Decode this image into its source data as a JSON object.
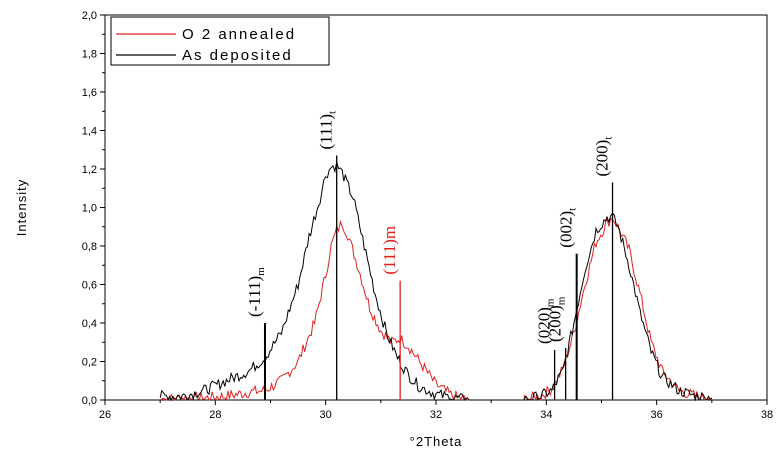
{
  "chart_data": {
    "type": "line",
    "xlabel": "°2Theta",
    "ylabel": "Intensity",
    "xlim": [
      26,
      38
    ],
    "ylim": [
      0,
      2.0
    ],
    "x_ticks": [
      "26",
      "28",
      "30",
      "32",
      "34",
      "36",
      "38"
    ],
    "y_ticks": [
      "0,0",
      "0,2",
      "0,4",
      "0,6",
      "0,8",
      "1,0",
      "1,2",
      "1,4",
      "1,6",
      "1,8",
      "2,0"
    ],
    "legend_position": "top-left",
    "colors": {
      "o2_annealed": "#e02020",
      "as_deposited": "#000000"
    },
    "series": [
      {
        "name": "O 2 annealed",
        "x": [
          27.0,
          27.4,
          27.8,
          28.2,
          28.6,
          28.9,
          29.2,
          29.5,
          29.8,
          30.0,
          30.1,
          30.2,
          30.3,
          30.4,
          30.6,
          30.8,
          31.0,
          31.2,
          31.35,
          31.5,
          31.7,
          32.0,
          32.3,
          32.6,
          33.6,
          33.9,
          34.1,
          34.3,
          34.5,
          34.7,
          34.9,
          35.1,
          35.2,
          35.3,
          35.5,
          35.7,
          35.9,
          36.1,
          36.4,
          36.7,
          37.0
        ],
        "y": [
          0.0,
          0.01,
          0.01,
          0.02,
          0.04,
          0.05,
          0.1,
          0.2,
          0.4,
          0.65,
          0.8,
          0.88,
          0.92,
          0.86,
          0.68,
          0.48,
          0.36,
          0.3,
          0.32,
          0.28,
          0.2,
          0.08,
          0.02,
          0.0,
          0.0,
          0.02,
          0.06,
          0.16,
          0.35,
          0.6,
          0.82,
          0.92,
          0.95,
          0.9,
          0.78,
          0.55,
          0.3,
          0.15,
          0.05,
          0.02,
          0.01
        ]
      },
      {
        "name": "As deposited",
        "x": [
          27.0,
          27.4,
          27.8,
          28.2,
          28.6,
          28.9,
          29.2,
          29.5,
          29.7,
          29.9,
          30.0,
          30.1,
          30.2,
          30.3,
          30.5,
          30.7,
          30.9,
          31.1,
          31.3,
          31.5,
          31.7,
          32.0,
          32.3,
          32.6,
          33.6,
          33.9,
          34.1,
          34.3,
          34.5,
          34.7,
          34.9,
          35.1,
          35.2,
          35.3,
          35.5,
          35.7,
          35.9,
          36.1,
          36.4,
          36.7,
          37.0
        ],
        "y": [
          0.02,
          0.02,
          0.05,
          0.1,
          0.15,
          0.22,
          0.35,
          0.6,
          0.85,
          1.05,
          1.17,
          1.21,
          1.22,
          1.18,
          1.05,
          0.8,
          0.55,
          0.35,
          0.22,
          0.13,
          0.07,
          0.03,
          0.01,
          0.0,
          0.0,
          0.02,
          0.05,
          0.15,
          0.4,
          0.68,
          0.88,
          0.95,
          0.95,
          0.9,
          0.7,
          0.45,
          0.25,
          0.12,
          0.05,
          0.02,
          0.01
        ]
      }
    ],
    "reference_lines": [
      {
        "x": 28.9,
        "height": 0.4,
        "color": "#000000",
        "label": "(-111)",
        "sub": "m"
      },
      {
        "x": 30.2,
        "height": 1.27,
        "color": "#000000",
        "label": "(111)",
        "sub": "t"
      },
      {
        "x": 31.35,
        "height": 0.62,
        "color": "#e02020",
        "label": "(111)m",
        "sub": ""
      },
      {
        "x": 34.15,
        "height": 0.26,
        "color": "#000000",
        "label": "(020)",
        "sub": "m"
      },
      {
        "x": 34.35,
        "height": 0.27,
        "color": "#000000",
        "label": "(200)",
        "sub": "m"
      },
      {
        "x": 34.55,
        "height": 0.76,
        "color": "#000000",
        "label": "(002)",
        "sub": "t"
      },
      {
        "x": 35.2,
        "height": 1.13,
        "color": "#000000",
        "label": "(200)",
        "sub": "t"
      }
    ]
  }
}
